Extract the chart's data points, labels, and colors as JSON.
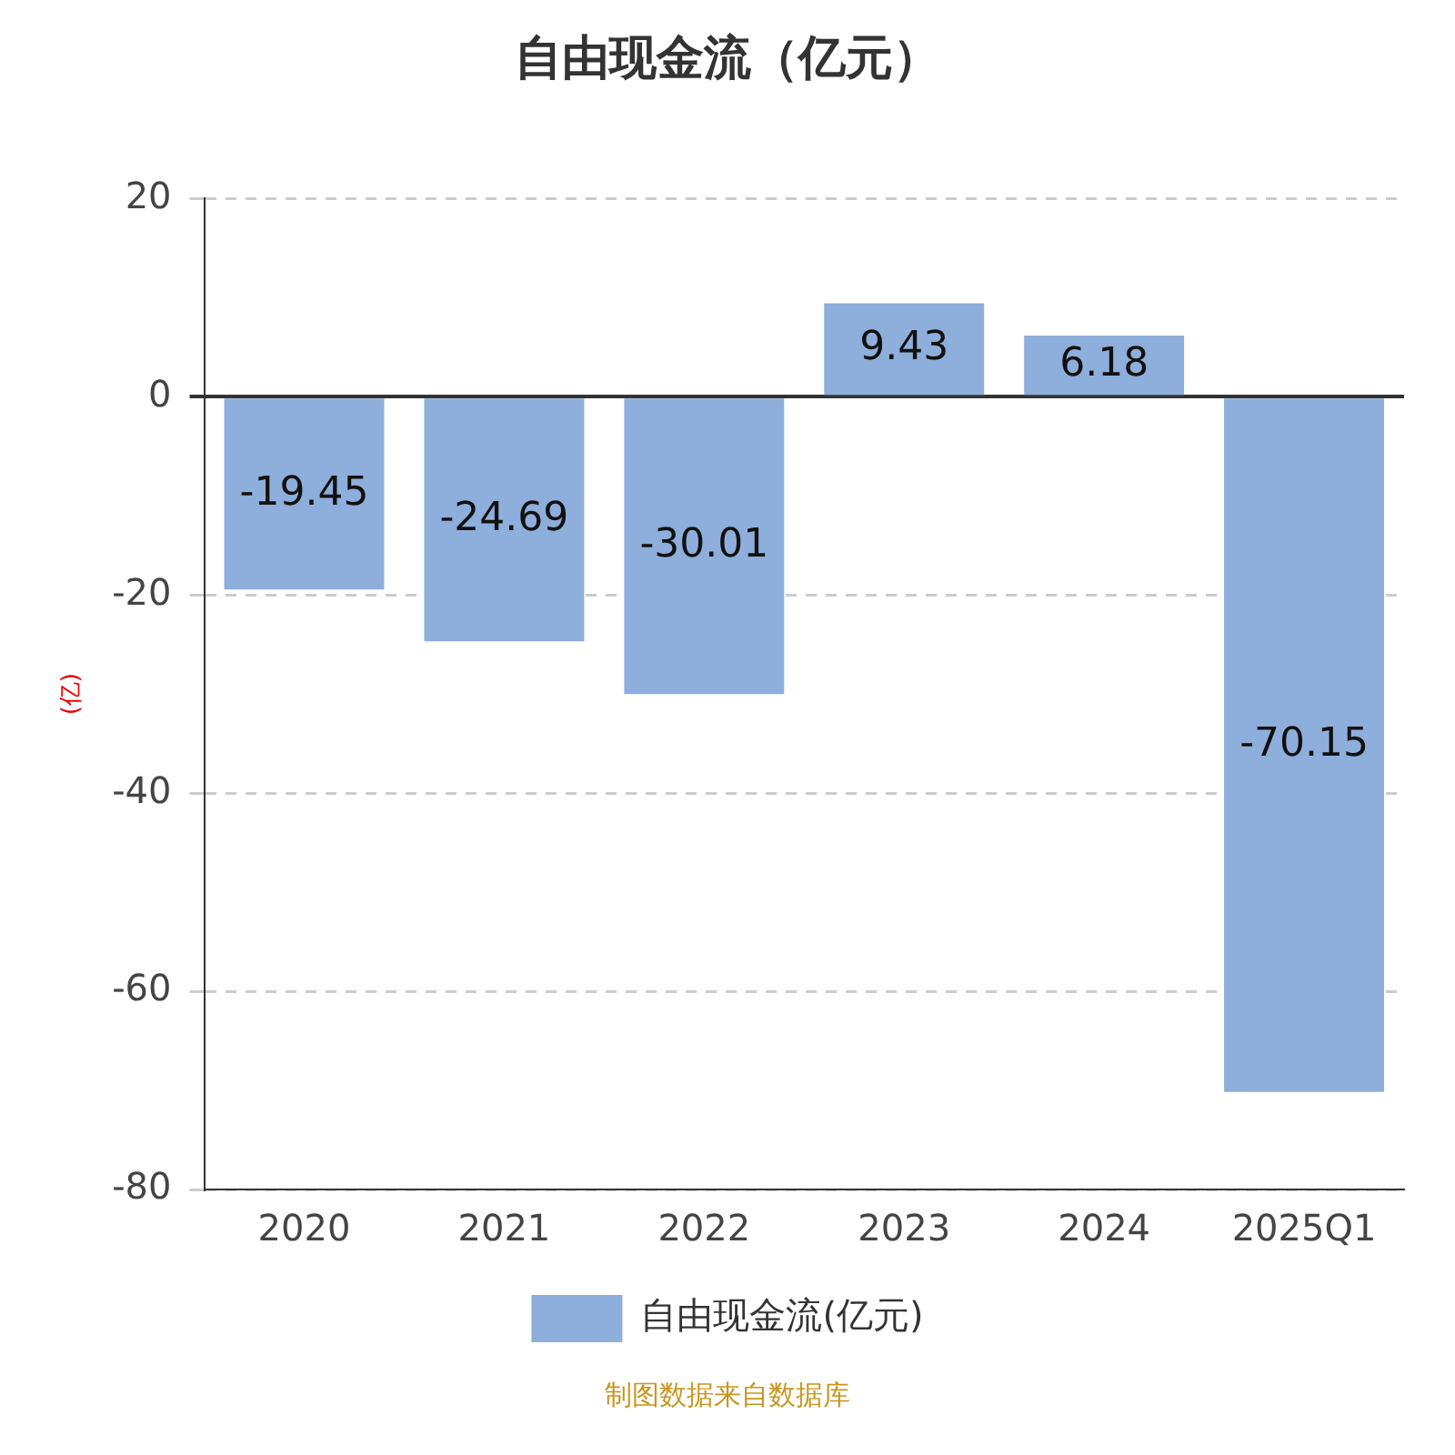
{
  "chart_data": {
    "type": "bar",
    "title": "自由现金流（亿元）",
    "ylabel": "(亿)",
    "categories": [
      "2020",
      "2021",
      "2022",
      "2023",
      "2024",
      "2025Q1"
    ],
    "series": [
      {
        "name": "自由现金流(亿元)",
        "color": "#8eaedb",
        "values": [
          -19.45,
          -24.69,
          -30.01,
          9.43,
          6.18,
          -70.15
        ]
      }
    ],
    "ylim": [
      -80,
      20
    ],
    "yticks": [
      -80,
      -60,
      -40,
      -20,
      0,
      20
    ],
    "grid": "y",
    "legend": "bottom",
    "data_labels": true,
    "annotations": [
      "制图数据来自数据库"
    ]
  }
}
